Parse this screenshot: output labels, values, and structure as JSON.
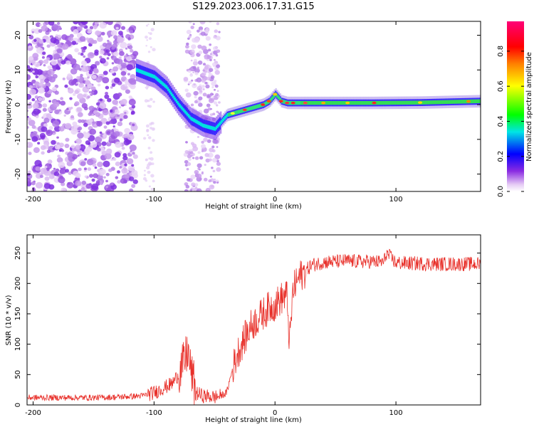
{
  "title": "S129.2023.006.17.31.G15",
  "chart_data": [
    {
      "type": "heatmap",
      "xlabel": "Height of straight line (km)",
      "ylabel": "Frequency (Hz)",
      "xlim": [
        -205,
        170
      ],
      "ylim": [
        -25,
        24
      ],
      "x_ticks": [
        -200,
        -100,
        0,
        100
      ],
      "y_ticks": [
        -20,
        -10,
        0,
        10,
        20
      ],
      "colorbar": {
        "label": "Normalized spectral amplitude",
        "range": [
          0.0,
          0.97
        ],
        "ticks": [
          0.0,
          0.2,
          0.4,
          0.6,
          0.8
        ],
        "colors": [
          "#ffffff",
          "#e6ccf5",
          "#8a2be2",
          "#0000ff",
          "#00e5e5",
          "#00ff00",
          "#ffff00",
          "#ff8000",
          "#ff0000",
          "#ff00aa"
        ]
      },
      "ridge_frequency": {
        "x": [
          -115,
          -100,
          -90,
          -80,
          -70,
          -60,
          -50,
          -45,
          -40,
          -30,
          -20,
          -10,
          -5,
          0,
          5,
          10,
          20,
          50,
          80,
          120,
          170
        ],
        "y": [
          10,
          8,
          5,
          0,
          -4,
          -6,
          -7,
          -5,
          -3,
          -2,
          -1,
          0,
          1,
          3,
          1,
          0.5,
          0.5,
          0.5,
          0.5,
          0.6,
          1
        ]
      }
    },
    {
      "type": "line",
      "xlabel": "Height of straight line (km)",
      "ylabel": "SNR (10 * v/v)",
      "xlim": [
        -205,
        170
      ],
      "ylim": [
        0,
        280
      ],
      "x_ticks": [
        -200,
        -100,
        0,
        100
      ],
      "y_ticks": [
        0,
        50,
        100,
        150,
        200,
        250
      ],
      "color": "#e8302a",
      "x": [
        -205,
        -190,
        -170,
        -150,
        -130,
        -110,
        -100,
        -95,
        -90,
        -85,
        -80,
        -75,
        -72,
        -70,
        -65,
        -60,
        -55,
        -50,
        -45,
        -40,
        -35,
        -30,
        -25,
        -20,
        -15,
        -10,
        -5,
        0,
        5,
        10,
        12,
        15,
        20,
        25,
        30,
        40,
        50,
        60,
        70,
        80,
        90,
        92,
        100,
        110,
        120,
        130,
        140,
        150,
        160,
        170
      ],
      "y": [
        12,
        12,
        12,
        12,
        13,
        15,
        20,
        25,
        30,
        35,
        50,
        70,
        90,
        60,
        20,
        15,
        14,
        13,
        15,
        20,
        60,
        90,
        110,
        130,
        140,
        150,
        160,
        165,
        175,
        180,
        100,
        190,
        210,
        220,
        230,
        235,
        236,
        237,
        236,
        236,
        235,
        250,
        234,
        233,
        233,
        232,
        232,
        232,
        232,
        232
      ]
    }
  ]
}
